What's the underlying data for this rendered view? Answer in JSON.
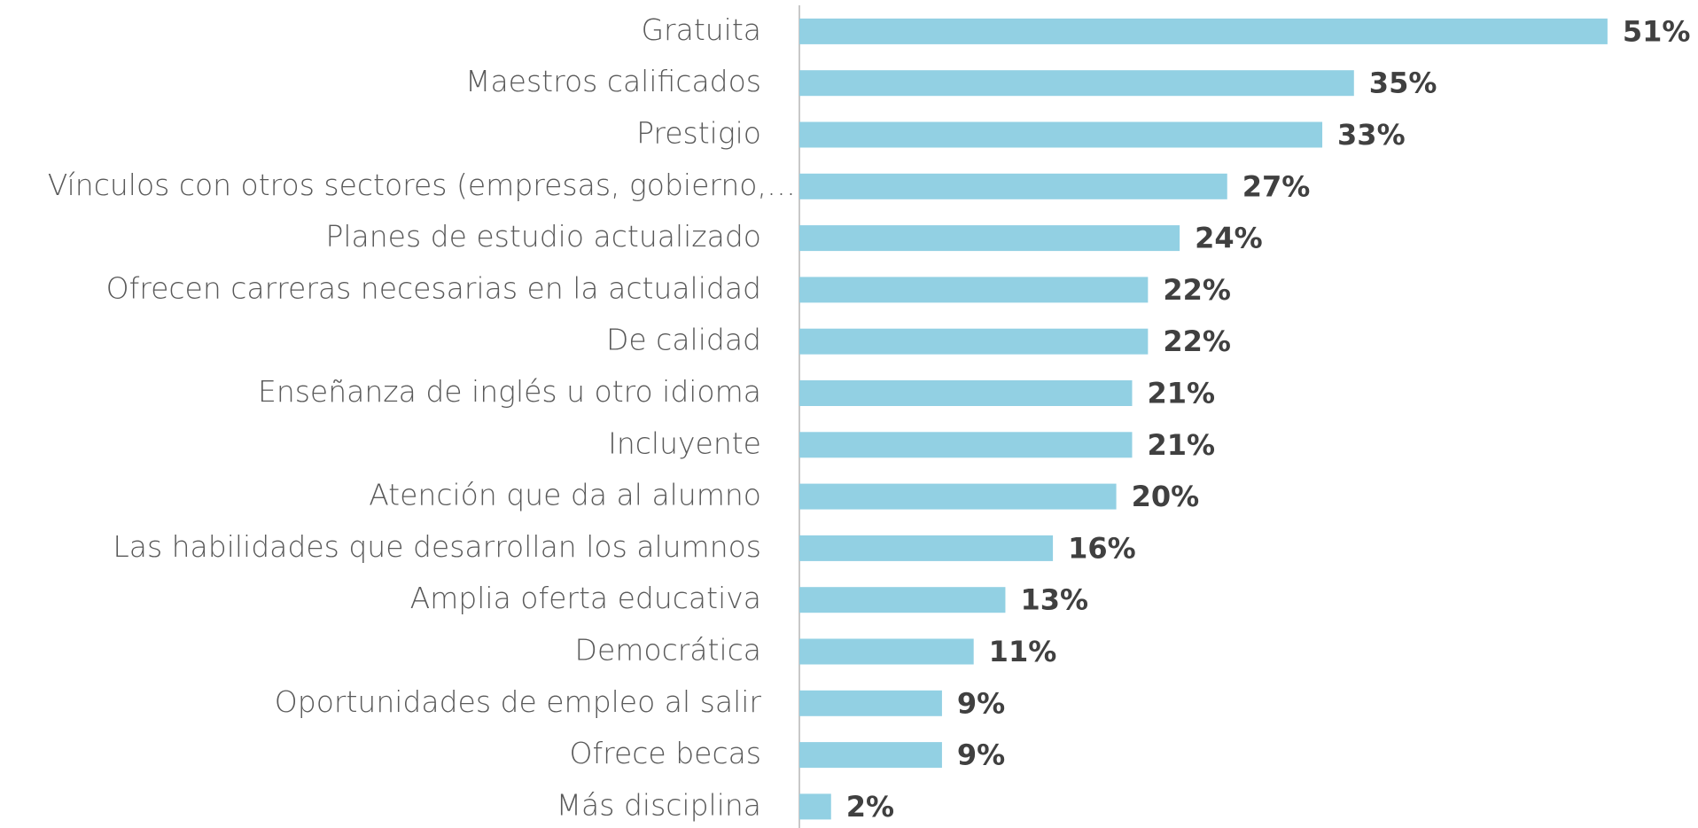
{
  "chart_data": {
    "type": "hbar",
    "categories": [
      "Gratuita",
      "Maestros calificados",
      "Prestigio",
      "Vínculos con otros sectores (empresas, gobierno,…",
      "Planes de estudio actualizado",
      "Ofrecen carreras necesarias en la actualidad",
      "De calidad",
      "Enseñanza de inglés u otro idioma",
      "Incluyente",
      "Atención que da al alumno",
      "Las habilidades que desarrollan los alumnos",
      "Amplia oferta educativa",
      "Democrática",
      "Oportunidades de empleo al salir",
      "Ofrece becas",
      "Más disciplina"
    ],
    "values": [
      51,
      35,
      33,
      27,
      24,
      22,
      22,
      21,
      21,
      20,
      16,
      13,
      11,
      9,
      9,
      2
    ],
    "value_labels": [
      "51%",
      "35%",
      "33%",
      "27%",
      "24%",
      "22%",
      "22%",
      "21%",
      "21%",
      "20%",
      "16%",
      "13%",
      "11%",
      "9%",
      "9%",
      "2%"
    ],
    "color": "#92d0e3"
  }
}
